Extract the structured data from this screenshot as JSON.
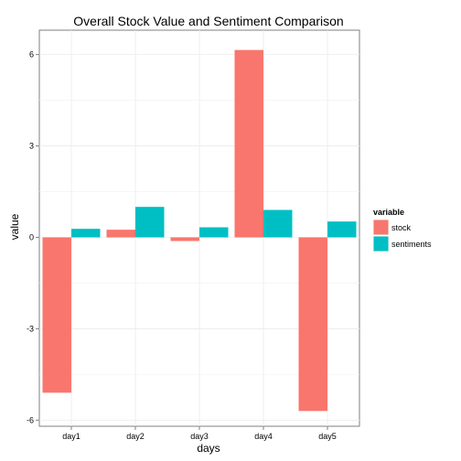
{
  "chart_data": {
    "type": "bar",
    "title": "Overall Stock Value and Sentiment Comparison",
    "xlabel": "days",
    "ylabel": "value",
    "categories": [
      "day1",
      "day2",
      "day3",
      "day4",
      "day5"
    ],
    "series": [
      {
        "name": "stock",
        "color": "#F8766D",
        "values": [
          -5.1,
          0.25,
          -0.12,
          6.15,
          -5.7
        ]
      },
      {
        "name": "sentiments",
        "color": "#00BFC4",
        "values": [
          0.28,
          1.0,
          0.33,
          0.9,
          0.52
        ]
      }
    ],
    "yticks": [
      -6,
      -3,
      0,
      3,
      6
    ],
    "ytick_labels": [
      "-6",
      "-3",
      "0",
      "3",
      "6"
    ],
    "ylim": [
      -6.2,
      6.8
    ],
    "legend": {
      "title": "variable",
      "position": "right"
    },
    "grid": true
  }
}
